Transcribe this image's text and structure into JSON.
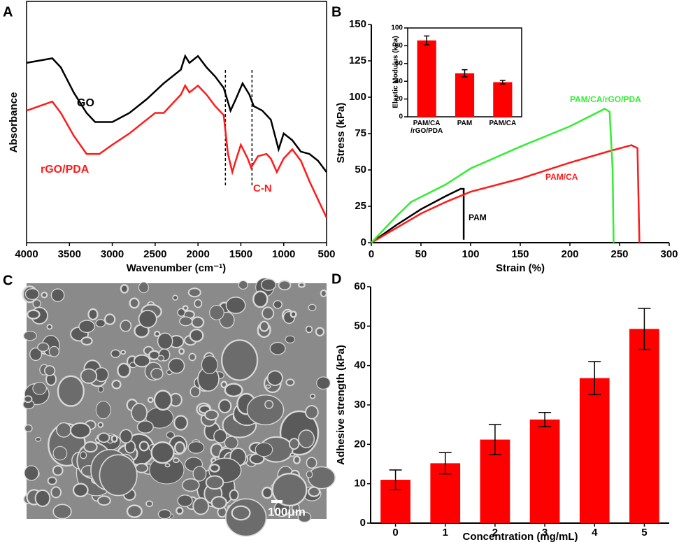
{
  "chart_data": [
    {
      "panel": "A",
      "type": "line",
      "xlabel": "Wavenumber (cm⁻¹)",
      "ylabel": "Absorbance",
      "xlim": [
        4000,
        500
      ],
      "xticks": [
        4000,
        3500,
        3000,
        2500,
        2000,
        1500,
        1000,
        500
      ],
      "ylim": [
        0,
        106
      ],
      "vlines": [
        1680,
        1370
      ],
      "annotations": [
        "C-N"
      ],
      "series": [
        {
          "name": "GO",
          "color": "#000000",
          "x": [
            4000,
            3700,
            3600,
            3450,
            3300,
            3200,
            3000,
            2800,
            2600,
            2400,
            2200,
            2150,
            2100,
            2000,
            1900,
            1800,
            1700,
            1620,
            1560,
            1480,
            1400,
            1350,
            1250,
            1150,
            1060,
            1000,
            900,
            800,
            700,
            600,
            500
          ],
          "values": [
            79,
            81,
            77,
            66,
            57,
            53,
            53,
            57,
            63,
            70,
            76,
            82,
            79,
            82,
            77,
            73,
            68,
            58,
            63,
            70,
            65,
            60,
            58,
            54,
            41,
            48,
            45,
            40,
            39,
            36,
            31
          ]
        },
        {
          "name": "rGO/PDA",
          "color": "#ff1a1a",
          "x": [
            4000,
            3700,
            3600,
            3450,
            3300,
            3150,
            3000,
            2800,
            2600,
            2500,
            2400,
            2200,
            2150,
            2100,
            2000,
            1900,
            1800,
            1700,
            1650,
            1600,
            1560,
            1500,
            1420,
            1380,
            1300,
            1200,
            1150,
            1080,
            1000,
            900,
            800,
            700,
            600,
            500
          ],
          "values": [
            58,
            62,
            57,
            47,
            39,
            39,
            43,
            48,
            54,
            57,
            57,
            65,
            69,
            66,
            69,
            65,
            60,
            56,
            39,
            31,
            36,
            43,
            37,
            33,
            38,
            39,
            37,
            31,
            37,
            41,
            36,
            27,
            19,
            11
          ]
        }
      ]
    },
    {
      "panel": "B",
      "type": "line",
      "xlabel": "Strain (%)",
      "ylabel": "Stress (kPa)",
      "xlim": [
        0,
        300
      ],
      "xticks": [
        0,
        50,
        100,
        150,
        200,
        250,
        300
      ],
      "ylim": [
        0,
        150
      ],
      "yticks": [
        0,
        25,
        50,
        75,
        100,
        125,
        150
      ],
      "series": [
        {
          "name": "PAM",
          "color": "#000000",
          "x": [
            0,
            25,
            50,
            75,
            90,
            93,
            93
          ],
          "values": [
            0,
            12,
            23,
            32,
            37,
            37,
            2
          ]
        },
        {
          "name": "PAM/CA",
          "color": "#ff1a1a",
          "x": [
            0,
            25,
            50,
            75,
            100,
            150,
            200,
            240,
            262,
            268,
            270
          ],
          "values": [
            0,
            10,
            20,
            28,
            35,
            44,
            55,
            63,
            67,
            65,
            0
          ]
        },
        {
          "name": "PAM/CA/rGO/PDA",
          "color": "#33ee33",
          "x": [
            0,
            25,
            40,
            75,
            100,
            150,
            200,
            235,
            240,
            243,
            244
          ],
          "values": [
            0,
            18,
            28,
            40,
            51,
            66,
            80,
            92,
            90,
            50,
            0
          ]
        }
      ]
    },
    {
      "type": "bar",
      "ylabel": "Elastic Modulus (kPa)",
      "color": "#ff0000",
      "categories": [
        "PAM/CA\n/rGO/PDA",
        "PAM",
        "PAM/CA"
      ],
      "values": [
        86,
        49,
        39
      ],
      "errors": [
        5,
        4,
        2
      ],
      "ylim": [
        0,
        100
      ],
      "yticks": [
        0,
        20,
        40,
        60,
        80,
        100
      ]
    },
    {
      "panel": "D",
      "type": "bar",
      "xlabel": "Concentration (mg/mL)",
      "ylabel": "Adhesive strength (kPa)",
      "color": "#ff0000",
      "categories": [
        "0",
        "1",
        "2",
        "3",
        "4",
        "5"
      ],
      "values": [
        11,
        15.2,
        21.2,
        26.3,
        36.8,
        49.3
      ],
      "errors": [
        2.5,
        2.7,
        3.8,
        1.8,
        4.2,
        5.2
      ],
      "ylim": [
        0,
        60
      ],
      "yticks": [
        0,
        10,
        20,
        30,
        40,
        50,
        60
      ]
    }
  ],
  "image": {
    "panel": "C",
    "scale_bar": "100μm"
  }
}
